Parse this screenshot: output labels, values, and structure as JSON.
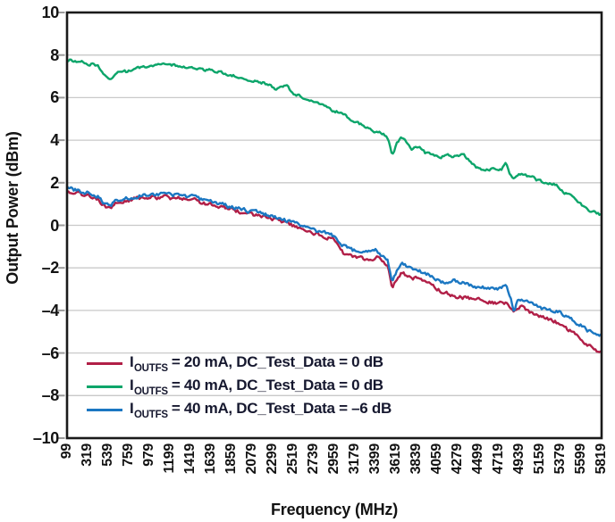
{
  "chart_data": {
    "type": "line",
    "title": "",
    "xlabel": "Frequency (MHz)",
    "ylabel": "Output Power (dBm)",
    "xlim": [
      99,
      5819
    ],
    "ylim": [
      -10,
      10
    ],
    "x_ticks": [
      99,
      319,
      539,
      759,
      979,
      1199,
      1419,
      1639,
      1859,
      2079,
      2299,
      2519,
      2739,
      2959,
      3179,
      3399,
      3619,
      3839,
      4059,
      4279,
      4499,
      4719,
      4939,
      5159,
      5379,
      5599,
      5819
    ],
    "y_ticks": [
      10,
      8,
      6,
      4,
      2,
      0,
      -2,
      -4,
      -6,
      -8,
      -10
    ],
    "grid": "horizontal-only",
    "legend_position": "inside-bottom-left",
    "colors": {
      "axis_border": "#1a1a1a",
      "gridline": "#c9c9c9",
      "tick_mark": "#9b9b9b",
      "tick_text": "#131313",
      "legend_text": "#16182f",
      "background": "#ffffff"
    },
    "series": [
      {
        "label_prefix": "I",
        "label_sub": "OUTFS",
        "label_rest": " = 20 mA, DC_Test_Data = 0 dB",
        "color": "#b11f47",
        "noise_db": 0.07,
        "points": [
          [
            99,
            1.62
          ],
          [
            150,
            1.56
          ],
          [
            210,
            1.5
          ],
          [
            270,
            1.44
          ],
          [
            330,
            1.39
          ],
          [
            390,
            1.32
          ],
          [
            440,
            1.18
          ],
          [
            490,
            0.95
          ],
          [
            530,
            0.78
          ],
          [
            570,
            0.83
          ],
          [
            620,
            1.0
          ],
          [
            670,
            1.1
          ],
          [
            720,
            1.15
          ],
          [
            780,
            1.2
          ],
          [
            840,
            1.24
          ],
          [
            900,
            1.28
          ],
          [
            960,
            1.31
          ],
          [
            1020,
            1.32
          ],
          [
            1080,
            1.3
          ],
          [
            1140,
            1.32
          ],
          [
            1200,
            1.29
          ],
          [
            1260,
            1.27
          ],
          [
            1320,
            1.25
          ],
          [
            1380,
            1.24
          ],
          [
            1440,
            1.21
          ],
          [
            1500,
            1.14
          ],
          [
            1560,
            1.04
          ],
          [
            1620,
            0.99
          ],
          [
            1680,
            0.94
          ],
          [
            1740,
            0.87
          ],
          [
            1800,
            0.81
          ],
          [
            1860,
            0.74
          ],
          [
            1920,
            0.67
          ],
          [
            1980,
            0.61
          ],
          [
            2040,
            0.54
          ],
          [
            2100,
            0.5
          ],
          [
            2160,
            0.47
          ],
          [
            2220,
            0.4
          ],
          [
            2280,
            0.34
          ],
          [
            2340,
            0.24
          ],
          [
            2400,
            0.14
          ],
          [
            2460,
            0.06
          ],
          [
            2520,
            -0.04
          ],
          [
            2580,
            -0.13
          ],
          [
            2640,
            -0.21
          ],
          [
            2700,
            -0.3
          ],
          [
            2760,
            -0.4
          ],
          [
            2820,
            -0.47
          ],
          [
            2880,
            -0.57
          ],
          [
            2940,
            -0.65
          ],
          [
            3000,
            -0.85
          ],
          [
            3050,
            -1.3
          ],
          [
            3110,
            -1.45
          ],
          [
            3170,
            -1.52
          ],
          [
            3230,
            -1.56
          ],
          [
            3290,
            -1.6
          ],
          [
            3350,
            -1.63
          ],
          [
            3410,
            -1.52
          ],
          [
            3470,
            -1.72
          ],
          [
            3530,
            -1.9
          ],
          [
            3576,
            -2.98
          ],
          [
            3630,
            -2.5
          ],
          [
            3680,
            -2.22
          ],
          [
            3740,
            -2.36
          ],
          [
            3800,
            -2.46
          ],
          [
            3860,
            -2.52
          ],
          [
            3920,
            -2.66
          ],
          [
            3980,
            -2.73
          ],
          [
            4040,
            -2.95
          ],
          [
            4110,
            -3.12
          ],
          [
            4180,
            -3.2
          ],
          [
            4250,
            -3.33
          ],
          [
            4320,
            -3.38
          ],
          [
            4380,
            -3.42
          ],
          [
            4440,
            -3.44
          ],
          [
            4500,
            -3.47
          ],
          [
            4560,
            -3.53
          ],
          [
            4620,
            -3.58
          ],
          [
            4680,
            -3.64
          ],
          [
            4740,
            -3.68
          ],
          [
            4798,
            -3.62
          ],
          [
            4840,
            -3.92
          ],
          [
            4880,
            -4.12
          ],
          [
            4925,
            -3.85
          ],
          [
            4965,
            -3.8
          ],
          [
            5025,
            -4.02
          ],
          [
            5085,
            -4.13
          ],
          [
            5145,
            -4.22
          ],
          [
            5205,
            -4.34
          ],
          [
            5265,
            -4.46
          ],
          [
            5325,
            -4.52
          ],
          [
            5385,
            -4.67
          ],
          [
            5445,
            -4.86
          ],
          [
            5505,
            -5.02
          ],
          [
            5565,
            -5.18
          ],
          [
            5625,
            -5.42
          ],
          [
            5685,
            -5.65
          ],
          [
            5745,
            -5.9
          ],
          [
            5785,
            -5.95
          ],
          [
            5819,
            -5.8
          ]
        ]
      },
      {
        "label_prefix": "I",
        "label_sub": "OUTFS",
        "label_rest": " = 40 mA, DC_Test_Data = 0 dB",
        "color": "#0ca56a",
        "noise_db": 0.05,
        "points": [
          [
            99,
            7.78
          ],
          [
            150,
            7.75
          ],
          [
            210,
            7.7
          ],
          [
            270,
            7.66
          ],
          [
            330,
            7.55
          ],
          [
            380,
            7.6
          ],
          [
            430,
            7.47
          ],
          [
            470,
            7.3
          ],
          [
            500,
            7.05
          ],
          [
            530,
            6.92
          ],
          [
            560,
            6.93
          ],
          [
            600,
            7.02
          ],
          [
            650,
            7.18
          ],
          [
            690,
            7.28
          ],
          [
            730,
            7.22
          ],
          [
            770,
            7.3
          ],
          [
            830,
            7.37
          ],
          [
            890,
            7.43
          ],
          [
            950,
            7.48
          ],
          [
            1010,
            7.51
          ],
          [
            1070,
            7.53
          ],
          [
            1130,
            7.55
          ],
          [
            1190,
            7.5
          ],
          [
            1250,
            7.52
          ],
          [
            1310,
            7.48
          ],
          [
            1370,
            7.44
          ],
          [
            1430,
            7.46
          ],
          [
            1490,
            7.39
          ],
          [
            1550,
            7.31
          ],
          [
            1610,
            7.3
          ],
          [
            1670,
            7.25
          ],
          [
            1730,
            7.19
          ],
          [
            1790,
            7.13
          ],
          [
            1850,
            7.06
          ],
          [
            1910,
            7.0
          ],
          [
            1970,
            6.93
          ],
          [
            2030,
            6.86
          ],
          [
            2090,
            6.81
          ],
          [
            2150,
            6.76
          ],
          [
            2210,
            6.69
          ],
          [
            2270,
            6.56
          ],
          [
            2340,
            6.4
          ],
          [
            2400,
            6.52
          ],
          [
            2450,
            6.56
          ],
          [
            2490,
            6.33
          ],
          [
            2530,
            6.18
          ],
          [
            2590,
            6.08
          ],
          [
            2650,
            5.93
          ],
          [
            2710,
            5.87
          ],
          [
            2770,
            5.77
          ],
          [
            2830,
            5.66
          ],
          [
            2890,
            5.5
          ],
          [
            2930,
            5.4
          ],
          [
            2970,
            5.36
          ],
          [
            3030,
            5.27
          ],
          [
            3080,
            5.2
          ],
          [
            3130,
            4.95
          ],
          [
            3190,
            4.85
          ],
          [
            3250,
            4.74
          ],
          [
            3310,
            4.58
          ],
          [
            3370,
            4.42
          ],
          [
            3430,
            4.36
          ],
          [
            3490,
            4.28
          ],
          [
            3540,
            4.05
          ],
          [
            3576,
            3.28
          ],
          [
            3630,
            3.85
          ],
          [
            3680,
            4.1
          ],
          [
            3730,
            3.88
          ],
          [
            3780,
            3.57
          ],
          [
            3830,
            3.73
          ],
          [
            3880,
            3.65
          ],
          [
            3930,
            3.42
          ],
          [
            3980,
            3.34
          ],
          [
            4040,
            3.28
          ],
          [
            4100,
            3.23
          ],
          [
            4160,
            3.3
          ],
          [
            4220,
            3.24
          ],
          [
            4280,
            3.29
          ],
          [
            4340,
            3.32
          ],
          [
            4400,
            3.1
          ],
          [
            4460,
            2.8
          ],
          [
            4520,
            2.62
          ],
          [
            4580,
            2.6
          ],
          [
            4640,
            2.64
          ],
          [
            4700,
            2.6
          ],
          [
            4750,
            2.65
          ],
          [
            4798,
            2.9
          ],
          [
            4840,
            2.35
          ],
          [
            4880,
            2.12
          ],
          [
            4925,
            2.38
          ],
          [
            4965,
            2.44
          ],
          [
            5025,
            2.3
          ],
          [
            5080,
            2.24
          ],
          [
            5140,
            2.1
          ],
          [
            5200,
            2.02
          ],
          [
            5260,
            1.97
          ],
          [
            5320,
            1.93
          ],
          [
            5380,
            1.72
          ],
          [
            5420,
            1.52
          ],
          [
            5470,
            1.56
          ],
          [
            5530,
            1.28
          ],
          [
            5590,
            1.02
          ],
          [
            5640,
            0.82
          ],
          [
            5700,
            0.66
          ],
          [
            5760,
            0.58
          ],
          [
            5819,
            0.48
          ]
        ]
      },
      {
        "label_prefix": "I",
        "label_sub": "OUTFS",
        "label_rest": " = 40 mA, DC_Test_Data = –6 dB",
        "color": "#1b77c2",
        "noise_db": 0.07,
        "points": [
          [
            99,
            1.78
          ],
          [
            150,
            1.7
          ],
          [
            210,
            1.63
          ],
          [
            270,
            1.57
          ],
          [
            330,
            1.52
          ],
          [
            390,
            1.47
          ],
          [
            440,
            1.35
          ],
          [
            490,
            1.1
          ],
          [
            530,
            0.95
          ],
          [
            570,
            0.98
          ],
          [
            620,
            1.15
          ],
          [
            670,
            1.25
          ],
          [
            720,
            1.28
          ],
          [
            780,
            1.32
          ],
          [
            840,
            1.36
          ],
          [
            900,
            1.4
          ],
          [
            960,
            1.43
          ],
          [
            1020,
            1.45
          ],
          [
            1080,
            1.44
          ],
          [
            1140,
            1.46
          ],
          [
            1200,
            1.42
          ],
          [
            1260,
            1.4
          ],
          [
            1320,
            1.37
          ],
          [
            1380,
            1.36
          ],
          [
            1440,
            1.34
          ],
          [
            1500,
            1.27
          ],
          [
            1560,
            1.17
          ],
          [
            1620,
            1.11
          ],
          [
            1680,
            1.06
          ],
          [
            1740,
            1.0
          ],
          [
            1800,
            0.93
          ],
          [
            1860,
            0.86
          ],
          [
            1920,
            0.79
          ],
          [
            1980,
            0.74
          ],
          [
            2040,
            0.67
          ],
          [
            2100,
            0.64
          ],
          [
            2160,
            0.6
          ],
          [
            2220,
            0.53
          ],
          [
            2280,
            0.47
          ],
          [
            2340,
            0.38
          ],
          [
            2400,
            0.28
          ],
          [
            2460,
            0.2
          ],
          [
            2520,
            0.1
          ],
          [
            2580,
            0.02
          ],
          [
            2640,
            -0.05
          ],
          [
            2700,
            -0.14
          ],
          [
            2760,
            -0.24
          ],
          [
            2820,
            -0.3
          ],
          [
            2880,
            -0.4
          ],
          [
            2940,
            -0.48
          ],
          [
            3000,
            -0.68
          ],
          [
            3050,
            -0.95
          ],
          [
            3110,
            -1.1
          ],
          [
            3170,
            -1.18
          ],
          [
            3230,
            -1.22
          ],
          [
            3290,
            -1.26
          ],
          [
            3350,
            -1.28
          ],
          [
            3410,
            -1.16
          ],
          [
            3470,
            -1.4
          ],
          [
            3530,
            -1.55
          ],
          [
            3576,
            -2.7
          ],
          [
            3630,
            -2.15
          ],
          [
            3680,
            -1.75
          ],
          [
            3740,
            -1.95
          ],
          [
            3800,
            -2.05
          ],
          [
            3860,
            -2.12
          ],
          [
            3920,
            -2.25
          ],
          [
            3980,
            -2.33
          ],
          [
            4040,
            -2.55
          ],
          [
            4110,
            -2.7
          ],
          [
            4180,
            -2.66
          ],
          [
            4250,
            -2.6
          ],
          [
            4320,
            -2.7
          ],
          [
            4380,
            -2.77
          ],
          [
            4440,
            -2.9
          ],
          [
            4500,
            -2.96
          ],
          [
            4560,
            -2.94
          ],
          [
            4620,
            -2.95
          ],
          [
            4680,
            -2.96
          ],
          [
            4740,
            -2.96
          ],
          [
            4798,
            -2.84
          ],
          [
            4840,
            -3.35
          ],
          [
            4880,
            -4.0
          ],
          [
            4925,
            -3.48
          ],
          [
            4965,
            -3.42
          ],
          [
            5025,
            -3.62
          ],
          [
            5085,
            -3.74
          ],
          [
            5145,
            -3.86
          ],
          [
            5205,
            -3.93
          ],
          [
            5265,
            -3.97
          ],
          [
            5325,
            -4.0
          ],
          [
            5385,
            -4.12
          ],
          [
            5445,
            -4.3
          ],
          [
            5505,
            -4.42
          ],
          [
            5565,
            -4.6
          ],
          [
            5625,
            -4.76
          ],
          [
            5685,
            -5.0
          ],
          [
            5745,
            -5.1
          ],
          [
            5819,
            -5.17
          ]
        ]
      }
    ]
  }
}
